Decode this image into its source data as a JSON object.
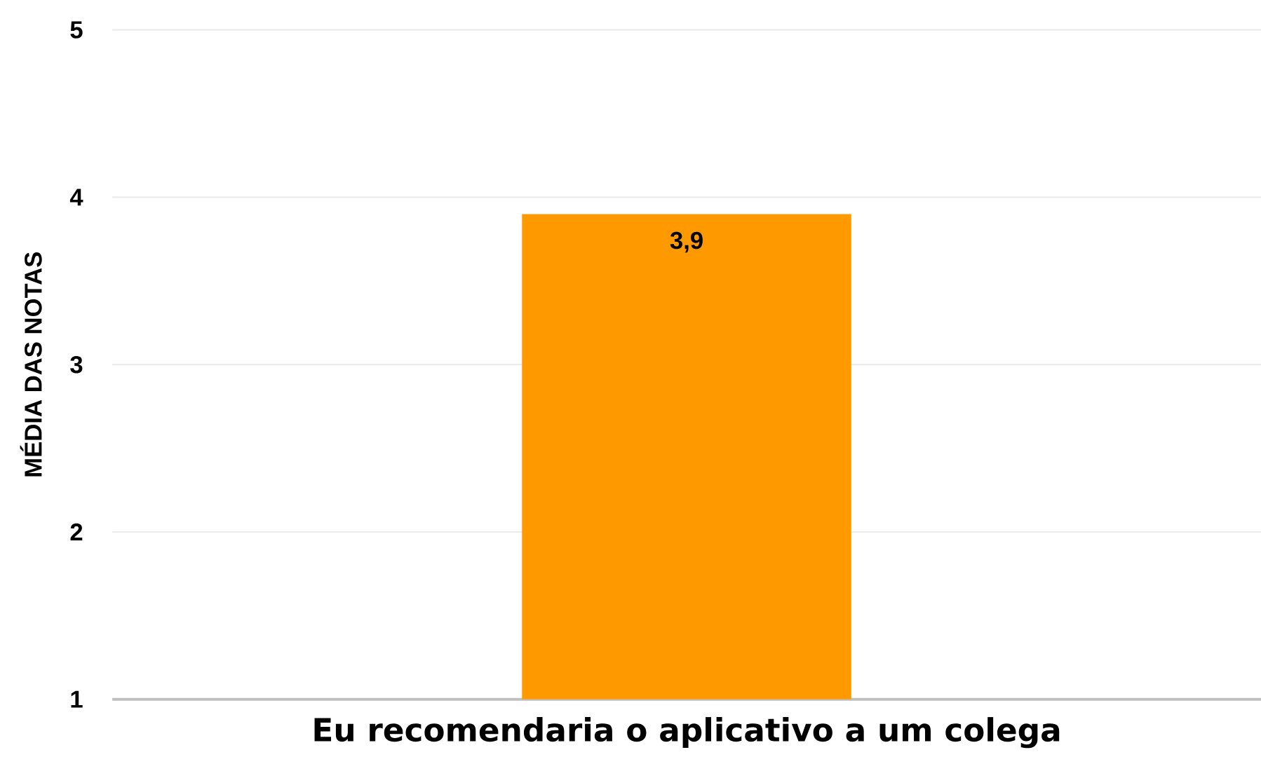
{
  "chart_data": {
    "type": "bar",
    "ylabel": "MÉDIA DAS NOTAS",
    "categories": [
      "Eu recomendaria o aplicativo a um colega"
    ],
    "values": [
      3.9
    ],
    "value_labels": [
      "3,9"
    ],
    "color": "#ff9900",
    "ylim": [
      1,
      5
    ],
    "yticks": [
      1,
      2,
      3,
      4,
      5
    ],
    "grid": "y"
  }
}
